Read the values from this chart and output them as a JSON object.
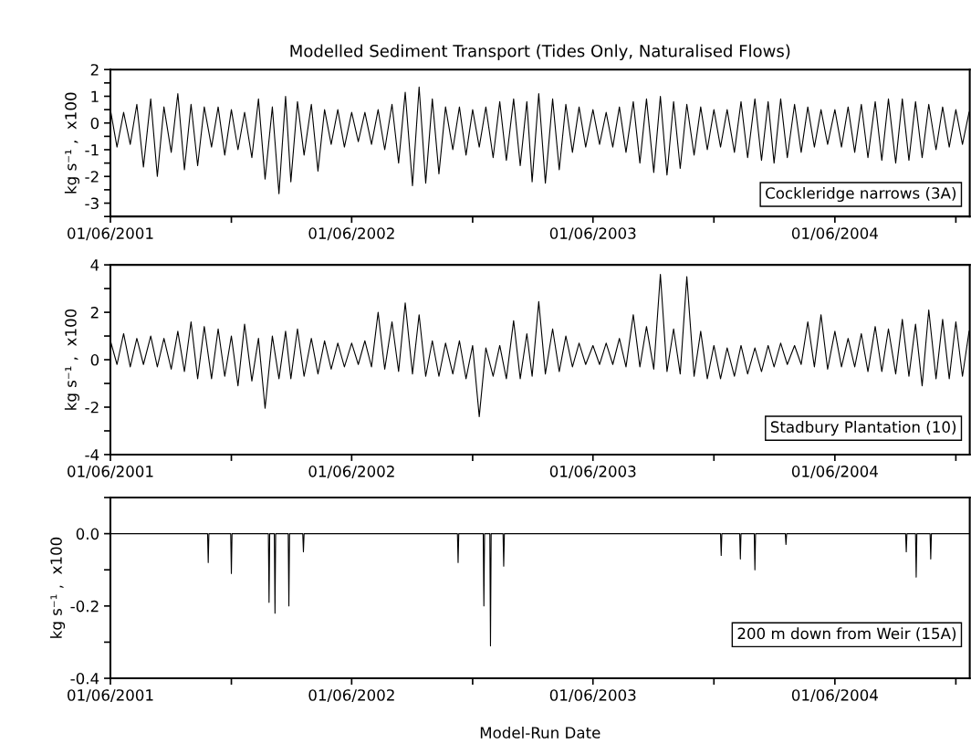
{
  "chart_data": [
    {
      "type": "line",
      "title": "Modelled Sediment Transport (Tides Only, Naturalised Flows)",
      "ylabel": "kg s⁻¹ ,  x100",
      "annotations": [
        "Cockleridge narrows (3A)"
      ],
      "xlim": [
        "2001-06-01",
        "2004-12-22"
      ],
      "ylim": [
        -3.5,
        2
      ],
      "xticks": [
        {
          "value": "2001-06-01",
          "label": "01/06/2001"
        },
        {
          "value": "2001-12-01",
          "label": null
        },
        {
          "value": "2002-06-01",
          "label": "01/06/2002"
        },
        {
          "value": "2002-12-01",
          "label": null
        },
        {
          "value": "2003-06-01",
          "label": "01/06/2003"
        },
        {
          "value": "2003-12-01",
          "label": null
        },
        {
          "value": "2004-06-01",
          "label": "01/06/2004"
        },
        {
          "value": "2004-12-01",
          "label": null
        }
      ],
      "yticks": [
        {
          "value": -3.5,
          "label": null
        },
        -3,
        {
          "value": -2.5,
          "label": null
        },
        -2,
        {
          "value": -1.5,
          "label": null
        },
        -1,
        {
          "value": -0.5,
          "label": null
        },
        0,
        {
          "value": 0.5,
          "label": null
        },
        1,
        {
          "value": 1.5,
          "label": null
        },
        2
      ],
      "x": [
        "2001-06-01",
        "2001-06-11",
        "2001-06-21",
        "2001-07-01",
        "2001-07-11",
        "2001-07-21",
        "2001-08-01",
        "2001-08-11",
        "2001-08-21",
        "2001-09-01",
        "2001-09-11",
        "2001-09-21",
        "2001-10-01",
        "2001-10-11",
        "2001-10-21",
        "2001-11-01",
        "2001-11-11",
        "2001-11-21",
        "2001-12-01",
        "2001-12-11",
        "2001-12-21",
        "2002-01-01",
        "2002-01-11",
        "2002-01-21",
        "2002-02-01",
        "2002-02-11",
        "2002-02-21",
        "2002-03-01",
        "2002-03-11",
        "2002-03-21",
        "2002-04-01",
        "2002-04-11",
        "2002-04-21",
        "2002-05-01",
        "2002-05-11",
        "2002-05-21",
        "2002-06-01",
        "2002-06-11",
        "2002-06-21",
        "2002-07-01",
        "2002-07-11",
        "2002-07-21",
        "2002-08-01",
        "2002-08-11",
        "2002-08-21",
        "2002-09-01",
        "2002-09-11",
        "2002-09-21",
        "2002-10-01",
        "2002-10-11",
        "2002-10-21",
        "2002-11-01",
        "2002-11-11",
        "2002-11-21",
        "2002-12-01",
        "2002-12-11",
        "2002-12-21",
        "2003-01-01",
        "2003-01-11",
        "2003-01-21",
        "2003-02-01",
        "2003-02-11",
        "2003-02-21",
        "2003-03-01",
        "2003-03-11",
        "2003-03-21",
        "2003-04-01",
        "2003-04-11",
        "2003-04-21",
        "2003-05-01",
        "2003-05-11",
        "2003-05-21",
        "2003-06-01",
        "2003-06-11",
        "2003-06-21",
        "2003-07-01",
        "2003-07-11",
        "2003-07-21",
        "2003-08-01",
        "2003-08-11",
        "2003-08-21",
        "2003-09-01",
        "2003-09-11",
        "2003-09-21",
        "2003-10-01",
        "2003-10-11",
        "2003-10-21",
        "2003-11-01",
        "2003-11-11",
        "2003-11-21",
        "2003-12-01",
        "2003-12-11",
        "2003-12-21",
        "2004-01-01",
        "2004-01-11",
        "2004-01-21",
        "2004-02-01",
        "2004-02-11",
        "2004-02-21",
        "2004-03-01",
        "2004-03-11",
        "2004-03-21",
        "2004-04-01",
        "2004-04-11",
        "2004-04-21",
        "2004-05-01",
        "2004-05-11",
        "2004-05-21",
        "2004-06-01",
        "2004-06-11",
        "2004-06-21",
        "2004-07-01",
        "2004-07-11",
        "2004-07-21",
        "2004-08-01",
        "2004-08-11",
        "2004-08-21",
        "2004-09-01",
        "2004-09-11",
        "2004-09-21",
        "2004-10-01",
        "2004-10-11",
        "2004-10-21",
        "2004-11-01",
        "2004-11-11",
        "2004-11-21",
        "2004-12-01",
        "2004-12-11",
        "2004-12-21"
      ],
      "series": [
        {
          "color": "#000000",
          "values": [
            0.5,
            -0.9,
            0.4,
            -0.8,
            0.7,
            -1.65,
            0.9,
            -2.0,
            0.6,
            -1.1,
            1.1,
            -1.75,
            0.7,
            -1.6,
            0.6,
            -0.9,
            0.6,
            -1.2,
            0.5,
            -1.0,
            0.4,
            -1.3,
            0.9,
            -2.1,
            0.6,
            -2.65,
            1.0,
            -2.2,
            0.8,
            -1.2,
            0.7,
            -1.8,
            0.5,
            -0.8,
            0.5,
            -0.9,
            0.4,
            -0.7,
            0.4,
            -0.8,
            0.5,
            -1.0,
            0.7,
            -1.5,
            1.15,
            -2.35,
            1.35,
            -2.25,
            0.9,
            -1.9,
            0.6,
            -1.0,
            0.6,
            -1.2,
            0.5,
            -0.9,
            0.6,
            -1.3,
            0.8,
            -1.4,
            0.9,
            -1.6,
            0.8,
            -2.2,
            1.1,
            -2.25,
            0.9,
            -1.75,
            0.7,
            -1.1,
            0.6,
            -0.9,
            0.5,
            -0.8,
            0.4,
            -0.9,
            0.6,
            -1.1,
            0.8,
            -1.5,
            0.9,
            -1.85,
            1.0,
            -1.95,
            0.8,
            -1.7,
            0.7,
            -1.2,
            0.6,
            -1.0,
            0.5,
            -0.9,
            0.5,
            -1.1,
            0.8,
            -1.3,
            0.9,
            -1.4,
            0.8,
            -1.5,
            0.9,
            -1.3,
            0.7,
            -1.1,
            0.6,
            -0.9,
            0.5,
            -0.8,
            0.5,
            -0.9,
            0.6,
            -1.1,
            0.7,
            -1.3,
            0.8,
            -1.4,
            0.9,
            -1.5,
            0.9,
            -1.4,
            0.8,
            -1.3,
            0.7,
            -1.0,
            0.6,
            -0.9,
            0.5,
            -0.8,
            0.4
          ]
        }
      ]
    },
    {
      "type": "line",
      "ylabel": "kg s⁻¹ ,  x100",
      "annotations": [
        "Stadbury Plantation (10)"
      ],
      "xlim": [
        "2001-06-01",
        "2004-12-22"
      ],
      "ylim": [
        -4,
        4
      ],
      "xticks": [
        {
          "value": "2001-06-01",
          "label": "01/06/2001"
        },
        {
          "value": "2001-12-01",
          "label": null
        },
        {
          "value": "2002-06-01",
          "label": "01/06/2002"
        },
        {
          "value": "2002-12-01",
          "label": null
        },
        {
          "value": "2003-06-01",
          "label": "01/06/2003"
        },
        {
          "value": "2003-12-01",
          "label": null
        },
        {
          "value": "2004-06-01",
          "label": "01/06/2004"
        },
        {
          "value": "2004-12-01",
          "label": null
        }
      ],
      "yticks": [
        -4,
        {
          "value": -3,
          "label": null
        },
        -2,
        {
          "value": -1,
          "label": null
        },
        0,
        {
          "value": 1,
          "label": null
        },
        2,
        {
          "value": 3,
          "label": null
        },
        4
      ],
      "x": [
        "2001-06-01",
        "2001-06-11",
        "2001-06-21",
        "2001-07-01",
        "2001-07-11",
        "2001-07-21",
        "2001-08-01",
        "2001-08-11",
        "2001-08-21",
        "2001-09-01",
        "2001-09-11",
        "2001-09-21",
        "2001-10-01",
        "2001-10-11",
        "2001-10-21",
        "2001-11-01",
        "2001-11-11",
        "2001-11-21",
        "2001-12-01",
        "2001-12-11",
        "2001-12-21",
        "2002-01-01",
        "2002-01-11",
        "2002-01-21",
        "2002-02-01",
        "2002-02-11",
        "2002-02-21",
        "2002-03-01",
        "2002-03-11",
        "2002-03-21",
        "2002-04-01",
        "2002-04-11",
        "2002-04-21",
        "2002-05-01",
        "2002-05-11",
        "2002-05-21",
        "2002-06-01",
        "2002-06-11",
        "2002-06-21",
        "2002-07-01",
        "2002-07-11",
        "2002-07-21",
        "2002-08-01",
        "2002-08-11",
        "2002-08-21",
        "2002-09-01",
        "2002-09-11",
        "2002-09-21",
        "2002-10-01",
        "2002-10-11",
        "2002-10-21",
        "2002-11-01",
        "2002-11-11",
        "2002-11-21",
        "2002-12-01",
        "2002-12-11",
        "2002-12-21",
        "2003-01-01",
        "2003-01-11",
        "2003-01-21",
        "2003-02-01",
        "2003-02-11",
        "2003-02-21",
        "2003-03-01",
        "2003-03-11",
        "2003-03-21",
        "2003-04-01",
        "2003-04-11",
        "2003-04-21",
        "2003-05-01",
        "2003-05-11",
        "2003-05-21",
        "2003-06-01",
        "2003-06-11",
        "2003-06-21",
        "2003-07-01",
        "2003-07-11",
        "2003-07-21",
        "2003-08-01",
        "2003-08-11",
        "2003-08-21",
        "2003-09-01",
        "2003-09-11",
        "2003-09-21",
        "2003-10-01",
        "2003-10-11",
        "2003-10-21",
        "2003-11-01",
        "2003-11-11",
        "2003-11-21",
        "2003-12-01",
        "2003-12-11",
        "2003-12-21",
        "2004-01-01",
        "2004-01-11",
        "2004-01-21",
        "2004-02-01",
        "2004-02-11",
        "2004-02-21",
        "2004-03-01",
        "2004-03-11",
        "2004-03-21",
        "2004-04-01",
        "2004-04-11",
        "2004-04-21",
        "2004-05-01",
        "2004-05-11",
        "2004-05-21",
        "2004-06-01",
        "2004-06-11",
        "2004-06-21",
        "2004-07-01",
        "2004-07-11",
        "2004-07-21",
        "2004-08-01",
        "2004-08-11",
        "2004-08-21",
        "2004-09-01",
        "2004-09-11",
        "2004-09-21",
        "2004-10-01",
        "2004-10-11",
        "2004-10-21",
        "2004-11-01",
        "2004-11-11",
        "2004-11-21",
        "2004-12-01",
        "2004-12-11",
        "2004-12-21"
      ],
      "series": [
        {
          "color": "#000000",
          "values": [
            0.8,
            -0.2,
            1.1,
            -0.3,
            0.9,
            -0.2,
            1.0,
            -0.3,
            0.9,
            -0.4,
            1.2,
            -0.5,
            1.6,
            -0.8,
            1.4,
            -0.8,
            1.3,
            -0.7,
            1.0,
            -1.1,
            1.5,
            -0.9,
            0.9,
            -2.05,
            1.0,
            -0.8,
            1.2,
            -0.8,
            1.3,
            -0.7,
            0.9,
            -0.6,
            0.8,
            -0.4,
            0.7,
            -0.3,
            0.7,
            -0.2,
            0.8,
            -0.3,
            2.0,
            -0.4,
            1.6,
            -0.5,
            2.4,
            -0.6,
            1.9,
            -0.7,
            0.8,
            -0.7,
            0.7,
            -0.6,
            0.8,
            -0.8,
            0.6,
            -2.4,
            0.5,
            -0.7,
            0.6,
            -0.8,
            1.65,
            -0.8,
            1.1,
            -0.7,
            2.45,
            -0.6,
            1.3,
            -0.5,
            1.0,
            -0.3,
            0.7,
            -0.2,
            0.6,
            -0.2,
            0.7,
            -0.2,
            0.9,
            -0.3,
            1.9,
            -0.3,
            1.4,
            -0.4,
            3.6,
            -0.5,
            1.3,
            -0.6,
            3.5,
            -0.7,
            1.2,
            -0.8,
            0.6,
            -0.8,
            0.5,
            -0.7,
            0.6,
            -0.6,
            0.5,
            -0.5,
            0.6,
            -0.3,
            0.7,
            -0.2,
            0.6,
            -0.2,
            1.6,
            -0.3,
            1.9,
            -0.4,
            1.2,
            -0.3,
            0.9,
            -0.3,
            1.1,
            -0.5,
            1.4,
            -0.5,
            1.3,
            -0.6,
            1.7,
            -0.7,
            1.5,
            -1.1,
            2.1,
            -0.8,
            1.7,
            -0.8,
            1.6,
            -0.7,
            1.2
          ]
        }
      ]
    },
    {
      "type": "line",
      "xlabel": "Model-Run Date",
      "ylabel": "kg s⁻¹ ,  x100",
      "annotations": [
        "200 m down from Weir (15A)"
      ],
      "xlim": [
        "2001-06-01",
        "2004-12-22"
      ],
      "ylim": [
        -0.4,
        0.1
      ],
      "xticks": [
        {
          "value": "2001-06-01",
          "label": "01/06/2001"
        },
        {
          "value": "2001-12-01",
          "label": null
        },
        {
          "value": "2002-06-01",
          "label": "01/06/2002"
        },
        {
          "value": "2002-12-01",
          "label": null
        },
        {
          "value": "2003-06-01",
          "label": "01/06/2003"
        },
        {
          "value": "2003-12-01",
          "label": null
        },
        {
          "value": "2004-06-01",
          "label": "01/06/2004"
        },
        {
          "value": "2004-12-01",
          "label": null
        }
      ],
      "yticks": [
        {
          "value": -0.4,
          "label": "-0.4"
        },
        {
          "value": -0.3,
          "label": null
        },
        {
          "value": -0.2,
          "label": "-0.2"
        },
        {
          "value": -0.1,
          "label": null
        },
        {
          "value": 0,
          "label": "0.0"
        },
        {
          "value": 0.1,
          "label": null
        }
      ],
      "x": [
        "2001-06-01",
        "2001-10-26",
        "2001-10-27",
        "2001-10-28",
        "2001-11-30",
        "2001-12-01",
        "2001-12-02",
        "2002-01-26",
        "2002-01-27",
        "2002-01-28",
        "2002-02-04",
        "2002-02-05",
        "2002-02-06",
        "2002-02-25",
        "2002-02-26",
        "2002-02-27",
        "2002-03-19",
        "2002-03-20",
        "2002-03-21",
        "2002-11-08",
        "2002-11-09",
        "2002-11-10",
        "2002-12-17",
        "2002-12-18",
        "2002-12-19",
        "2002-12-27",
        "2002-12-28",
        "2002-12-29",
        "2003-01-16",
        "2003-01-17",
        "2003-01-18",
        "2003-12-11",
        "2003-12-12",
        "2003-12-13",
        "2004-01-09",
        "2004-01-10",
        "2004-01-11",
        "2004-01-31",
        "2004-02-01",
        "2004-02-02",
        "2004-03-18",
        "2004-03-19",
        "2004-03-20",
        "2004-09-16",
        "2004-09-17",
        "2004-09-18",
        "2004-10-01",
        "2004-10-02",
        "2004-10-03",
        "2004-10-23",
        "2004-10-24",
        "2004-10-25",
        "2004-12-21"
      ],
      "series": [
        {
          "color": "#000000",
          "values": [
            0,
            0,
            -0.08,
            0,
            0,
            -0.11,
            0,
            0,
            -0.19,
            0,
            0,
            -0.22,
            0,
            0,
            -0.2,
            0,
            0,
            -0.05,
            0,
            0,
            -0.08,
            0,
            0,
            -0.2,
            0,
            0,
            -0.31,
            0,
            0,
            -0.09,
            0,
            0,
            -0.06,
            0,
            0,
            -0.07,
            0,
            0,
            -0.1,
            0,
            0,
            -0.03,
            0,
            0,
            -0.05,
            0,
            0,
            -0.12,
            0,
            0,
            -0.07,
            0,
            0
          ]
        }
      ]
    }
  ]
}
